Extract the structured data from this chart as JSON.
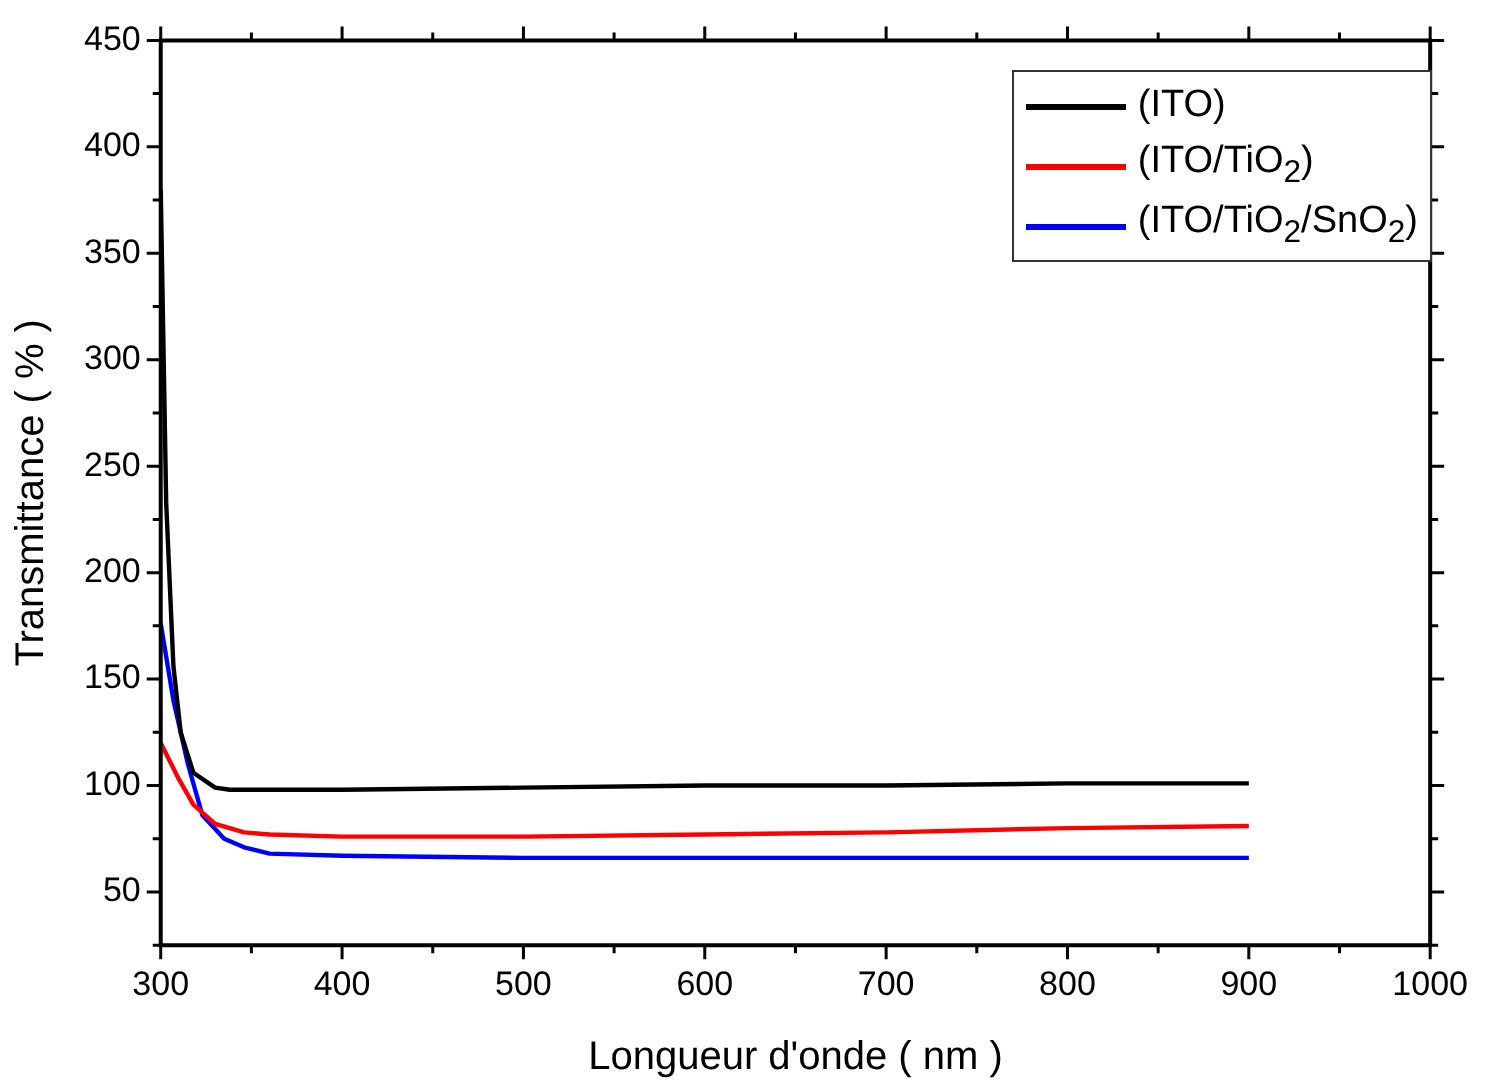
{
  "chart_data": {
    "type": "line",
    "xlabel": "Longueur d'onde ( nm )",
    "ylabel": "Transmittance ( % )",
    "xlim": [
      300,
      1000
    ],
    "xticks": [
      300,
      400,
      500,
      600,
      700,
      800,
      900,
      1000
    ],
    "ylim": [
      25,
      450
    ],
    "yticks": [
      50,
      100,
      150,
      200,
      250,
      300,
      350,
      400,
      450
    ],
    "grid": false,
    "legend": "top right",
    "marker": "none",
    "line_style": "solid",
    "series": [
      {
        "name": "(ITO)",
        "color": "#000000",
        "x": [
          300,
          303,
          307,
          311,
          318,
          330,
          338,
          350,
          400,
          500,
          600,
          700,
          800,
          900
        ],
        "values": [
          380,
          233,
          156,
          125,
          106,
          99,
          98,
          98,
          98,
          99,
          100,
          100,
          101,
          101
        ]
      },
      {
        "name": "(ITO/TiO$_{2}$)",
        "color": "#ff0000",
        "x": [
          300,
          310,
          318,
          330,
          346,
          360,
          400,
          500,
          600,
          700,
          800,
          900
        ],
        "values": [
          120,
          103,
          91,
          82,
          78,
          77,
          76,
          76,
          77,
          78,
          80,
          81
        ]
      },
      {
        "name": "(ITO/TiO$_{2}$/SnO$_{2}$)",
        "color": "#0000ff",
        "x": [
          300,
          307,
          315,
          323,
          335,
          346,
          360,
          400,
          500,
          600,
          700,
          800,
          900
        ],
        "values": [
          176,
          140,
          110,
          86,
          75,
          71,
          68,
          67,
          66,
          66,
          66,
          66,
          66
        ]
      }
    ]
  }
}
